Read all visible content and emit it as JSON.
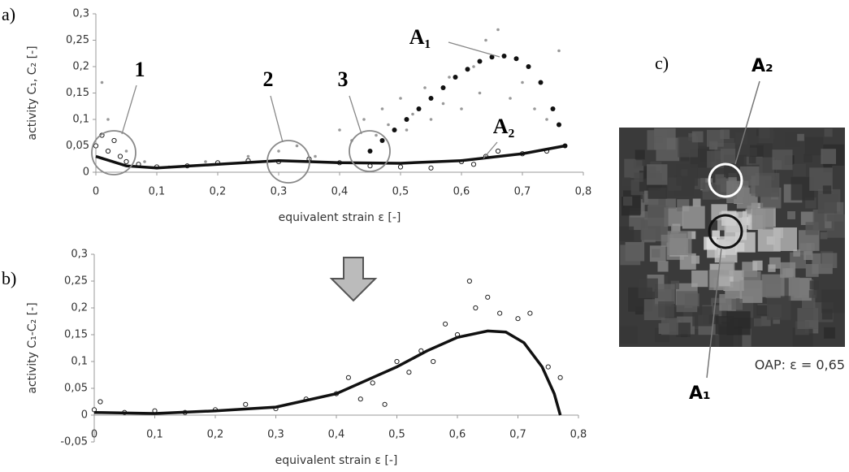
{
  "chart_data": [
    {
      "type": "scatter",
      "panel_label": "a)",
      "xlabel": "equivalent strain ε [-]",
      "ylabel": "activity C₁, C₂ [-]",
      "xlim": [
        0,
        0.8
      ],
      "ylim": [
        0,
        0.3
      ],
      "xticks": [
        0,
        {
          "value": 0.1,
          "label": "0,1"
        },
        {
          "value": 0.2,
          "label": "0,2"
        },
        {
          "value": 0.3,
          "label": "0,3"
        },
        {
          "value": 0.4,
          "label": "0,4"
        },
        {
          "value": 0.5,
          "label": "0,5"
        },
        {
          "value": 0.6,
          "label": "0,6"
        },
        {
          "value": 0.7,
          "label": "0,7"
        },
        {
          "value": 0.8,
          "label": "0,8"
        }
      ],
      "yticks": [
        0,
        {
          "value": 0.05,
          "label": "0,05"
        },
        {
          "value": 0.1,
          "label": "0,1"
        },
        {
          "value": 0.15,
          "label": "0,15"
        },
        {
          "value": 0.2,
          "label": "0,2"
        },
        {
          "value": 0.25,
          "label": "0,25"
        },
        {
          "value": 0.3,
          "label": "0,3"
        }
      ],
      "annotations": [
        "1",
        "2",
        "3",
        "A₁",
        "A₂"
      ],
      "series": [
        {
          "marker": "dot",
          "color": "#999999",
          "x": [
            0.01,
            0.02,
            0.03,
            0.05,
            0.08,
            0.12,
            0.18,
            0.25,
            0.3,
            0.33,
            0.36,
            0.4,
            0.42,
            0.44,
            0.46,
            0.47,
            0.48,
            0.5,
            0.51,
            0.52,
            0.54,
            0.55,
            0.57,
            0.58,
            0.6,
            0.62,
            0.63,
            0.64,
            0.66,
            0.68,
            0.7,
            0.72,
            0.74,
            0.76
          ],
          "values": [
            0.17,
            0.1,
            0.06,
            0.04,
            0.02,
            0.01,
            0.02,
            0.03,
            0.04,
            0.05,
            0.03,
            0.08,
            0.06,
            0.1,
            0.07,
            0.12,
            0.09,
            0.14,
            0.08,
            0.11,
            0.16,
            0.1,
            0.13,
            0.18,
            0.12,
            0.2,
            0.15,
            0.25,
            0.27,
            0.14,
            0.17,
            0.12,
            0.1,
            0.23
          ]
        },
        {
          "marker": "dot",
          "color": "#111111",
          "x": [
            0.45,
            0.47,
            0.49,
            0.51,
            0.53,
            0.55,
            0.57,
            0.59,
            0.61,
            0.63,
            0.65,
            0.67,
            0.69,
            0.71,
            0.73,
            0.75,
            0.76,
            0.77
          ],
          "values": [
            0.04,
            0.06,
            0.08,
            0.1,
            0.12,
            0.14,
            0.16,
            0.18,
            0.195,
            0.21,
            0.218,
            0.22,
            0.215,
            0.2,
            0.17,
            0.12,
            0.09,
            0.05
          ]
        },
        {
          "marker": "circle",
          "color": "#222222",
          "x": [
            0,
            0.01,
            0.02,
            0.03,
            0.04,
            0.05,
            0.07,
            0.1,
            0.15,
            0.2,
            0.25,
            0.3,
            0.35,
            0.4,
            0.45,
            0.5,
            0.55,
            0.6,
            0.62,
            0.64,
            0.66,
            0.7,
            0.74
          ],
          "values": [
            0.05,
            0.07,
            0.04,
            0.06,
            0.03,
            0.02,
            0.015,
            0.01,
            0.012,
            0.018,
            0.022,
            0.02,
            0.025,
            0.018,
            0.012,
            0.01,
            0.008,
            0.02,
            0.015,
            0.03,
            0.04,
            0.035,
            0.04
          ]
        },
        {
          "marker": "line",
          "color": "#111111",
          "x": [
            0,
            0.05,
            0.1,
            0.2,
            0.3,
            0.4,
            0.5,
            0.6,
            0.7,
            0.77
          ],
          "values": [
            0.03,
            0.012,
            0.008,
            0.015,
            0.022,
            0.018,
            0.017,
            0.022,
            0.035,
            0.05
          ]
        }
      ]
    },
    {
      "type": "scatter",
      "panel_label": "b)",
      "xlabel": "equivalent strain ε [-]",
      "ylabel": "activity C₁-C₂ [-]",
      "xlim": [
        0,
        0.8
      ],
      "ylim": [
        -0.05,
        0.3
      ],
      "xticks": [
        0,
        {
          "value": 0.1,
          "label": "0,1"
        },
        {
          "value": 0.2,
          "label": "0,2"
        },
        {
          "value": 0.3,
          "label": "0,3"
        },
        {
          "value": 0.4,
          "label": "0,4"
        },
        {
          "value": 0.5,
          "label": "0,5"
        },
        {
          "value": 0.6,
          "label": "0,6"
        },
        {
          "value": 0.7,
          "label": "0,7"
        },
        {
          "value": 0.8,
          "label": "0,8"
        }
      ],
      "yticks": [
        {
          "value": -0.05,
          "label": "-0,05"
        },
        0,
        {
          "value": 0.05,
          "label": "0,05"
        },
        {
          "value": 0.1,
          "label": "0,1"
        },
        {
          "value": 0.15,
          "label": "0,15"
        },
        {
          "value": 0.2,
          "label": "0,2"
        },
        {
          "value": 0.25,
          "label": "0,25"
        },
        {
          "value": 0.3,
          "label": "0,3"
        }
      ],
      "annotations": [],
      "series": [
        {
          "marker": "circle",
          "color": "#222222",
          "x": [
            0,
            0.01,
            0.05,
            0.1,
            0.15,
            0.2,
            0.25,
            0.3,
            0.35,
            0.4,
            0.42,
            0.44,
            0.46,
            0.48,
            0.5,
            0.52,
            0.54,
            0.56,
            0.58,
            0.6,
            0.62,
            0.63,
            0.65,
            0.67,
            0.7,
            0.72,
            0.75,
            0.77
          ],
          "values": [
            0.01,
            0.025,
            0.005,
            0.008,
            0.005,
            0.01,
            0.02,
            0.012,
            0.03,
            0.04,
            0.07,
            0.03,
            0.06,
            0.02,
            0.1,
            0.08,
            0.12,
            0.1,
            0.17,
            0.15,
            0.25,
            0.2,
            0.22,
            0.19,
            0.18,
            0.19,
            0.09,
            0.07
          ]
        },
        {
          "marker": "line",
          "color": "#111111",
          "x": [
            0,
            0.1,
            0.2,
            0.3,
            0.4,
            0.5,
            0.55,
            0.6,
            0.65,
            0.68,
            0.71,
            0.74,
            0.76,
            0.77
          ],
          "values": [
            0.005,
            0.003,
            0.008,
            0.015,
            0.04,
            0.09,
            0.12,
            0.145,
            0.157,
            0.155,
            0.135,
            0.09,
            0.04,
            0
          ]
        }
      ]
    }
  ],
  "image_panel": {
    "panel_label": "c)",
    "labels": [
      "A₂",
      "A₁"
    ],
    "caption": "OAP:  ε = 0,65"
  }
}
